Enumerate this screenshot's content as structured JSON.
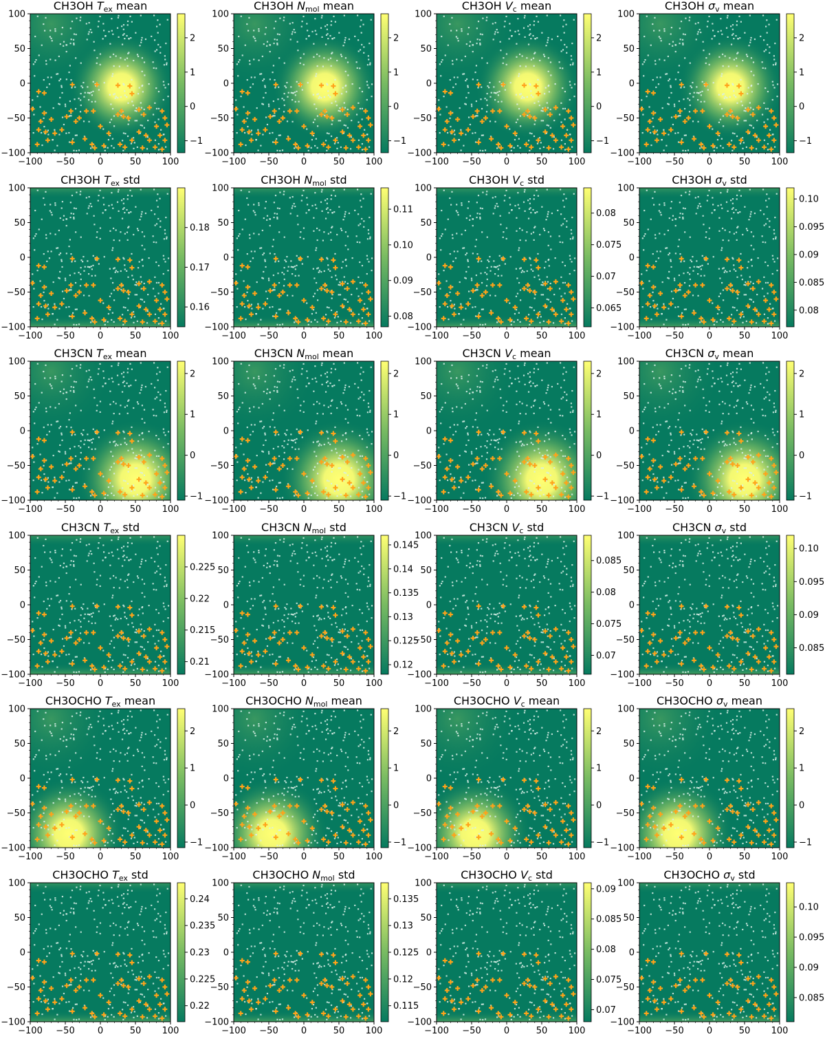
{
  "figure": {
    "x_ticks": [
      -100,
      -50,
      0,
      50,
      100
    ],
    "y_ticks": [
      -100,
      -50,
      0,
      50,
      100
    ],
    "xlim": [
      -100,
      100
    ],
    "ylim": [
      -100,
      100
    ],
    "colormap": {
      "low": "#067a5f",
      "mid": "#78bb62",
      "high": "#ffff73"
    },
    "point_colors": {
      "white": "#d8efe6",
      "orange": "#ffa31a"
    }
  },
  "chart_data": [
    {
      "type": "heatmap",
      "title_prefix": "CH3OH",
      "var_sym": "T",
      "var_sub": "ex",
      "stat": "mean",
      "colorbar_ticks": [
        -1,
        0,
        1,
        2
      ],
      "colorbar_range": [
        -1.35,
        2.7
      ],
      "blob": {
        "x": 30,
        "y": -5,
        "r": 75
      }
    },
    {
      "type": "heatmap",
      "title_prefix": "CH3OH",
      "var_sym": "N",
      "var_sub": "mol",
      "stat": "mean",
      "colorbar_ticks": [
        -1,
        0,
        1,
        2
      ],
      "colorbar_range": [
        -1.35,
        2.7
      ],
      "blob": {
        "x": 30,
        "y": -5,
        "r": 75
      }
    },
    {
      "type": "heatmap",
      "title_prefix": "CH3OH",
      "var_sym": "V",
      "var_sub": "c",
      "stat": "mean",
      "colorbar_ticks": [
        -1,
        0,
        1,
        2
      ],
      "colorbar_range": [
        -1.35,
        2.7
      ],
      "blob": {
        "x": 30,
        "y": -5,
        "r": 75
      }
    },
    {
      "type": "heatmap",
      "title_prefix": "CH3OH",
      "var_sym": "σ",
      "var_sub": "v",
      "stat": "mean",
      "colorbar_ticks": [
        -1,
        0,
        1,
        2
      ],
      "colorbar_range": [
        -1.35,
        2.7
      ],
      "blob": {
        "x": 30,
        "y": -5,
        "r": 75
      }
    },
    {
      "type": "heatmap",
      "title_prefix": "CH3OH",
      "var_sym": "T",
      "var_sub": "ex",
      "stat": "std",
      "colorbar_ticks": [
        0.16,
        0.17,
        0.18
      ],
      "colorbar_range": [
        0.155,
        0.19
      ]
    },
    {
      "type": "heatmap",
      "title_prefix": "CH3OH",
      "var_sym": "N",
      "var_sub": "mol",
      "stat": "std",
      "colorbar_ticks": [
        0.08,
        0.09,
        0.1,
        0.11
      ],
      "colorbar_range": [
        0.077,
        0.116
      ]
    },
    {
      "type": "heatmap",
      "title_prefix": "CH3OH",
      "var_sym": "V",
      "var_sub": "c",
      "stat": "std",
      "colorbar_ticks": [
        0.065,
        0.07,
        0.075,
        0.08
      ],
      "colorbar_range": [
        0.062,
        0.084
      ]
    },
    {
      "type": "heatmap",
      "title_prefix": "CH3OH",
      "var_sym": "σ",
      "var_sub": "v",
      "stat": "std",
      "colorbar_ticks": [
        0.08,
        0.085,
        0.09,
        0.095,
        0.1
      ],
      "colorbar_range": [
        0.077,
        0.102
      ]
    },
    {
      "type": "heatmap",
      "title_prefix": "CH3CN",
      "var_sym": "T",
      "var_sub": "ex",
      "stat": "mean",
      "colorbar_ticks": [
        -1,
        0,
        1,
        2
      ],
      "colorbar_range": [
        -1.1,
        2.3
      ],
      "blob": {
        "x": 50,
        "y": -70,
        "r": 85
      }
    },
    {
      "type": "heatmap",
      "title_prefix": "CH3CN",
      "var_sym": "N",
      "var_sub": "mol",
      "stat": "mean",
      "colorbar_ticks": [
        -1,
        0,
        1,
        2
      ],
      "colorbar_range": [
        -1.1,
        2.3
      ],
      "blob": {
        "x": 50,
        "y": -70,
        "r": 85
      }
    },
    {
      "type": "heatmap",
      "title_prefix": "CH3CN",
      "var_sym": "V",
      "var_sub": "c",
      "stat": "mean",
      "colorbar_ticks": [
        -1,
        0,
        1,
        2
      ],
      "colorbar_range": [
        -1.1,
        2.3
      ],
      "blob": {
        "x": 50,
        "y": -70,
        "r": 85
      }
    },
    {
      "type": "heatmap",
      "title_prefix": "CH3CN",
      "var_sym": "σ",
      "var_sub": "v",
      "stat": "mean",
      "colorbar_ticks": [
        -1,
        0,
        1,
        2
      ],
      "colorbar_range": [
        -1.1,
        2.3
      ],
      "blob": {
        "x": 50,
        "y": -70,
        "r": 85
      }
    },
    {
      "type": "heatmap",
      "title_prefix": "CH3CN",
      "var_sym": "T",
      "var_sub": "ex",
      "stat": "std",
      "colorbar_ticks": [
        0.21,
        0.215,
        0.22,
        0.225
      ],
      "colorbar_range": [
        0.208,
        0.23
      ]
    },
    {
      "type": "heatmap",
      "title_prefix": "CH3CN",
      "var_sym": "N",
      "var_sub": "mol",
      "stat": "std",
      "colorbar_ticks": [
        0.12,
        0.125,
        0.13,
        0.135,
        0.14,
        0.145
      ],
      "colorbar_range": [
        0.118,
        0.147
      ]
    },
    {
      "type": "heatmap",
      "title_prefix": "CH3CN",
      "var_sym": "V",
      "var_sub": "c",
      "stat": "std",
      "colorbar_ticks": [
        0.07,
        0.075,
        0.08,
        0.085
      ],
      "colorbar_range": [
        0.067,
        0.089
      ]
    },
    {
      "type": "heatmap",
      "title_prefix": "CH3CN",
      "var_sym": "σ",
      "var_sub": "v",
      "stat": "std",
      "colorbar_ticks": [
        0.085,
        0.09,
        0.095,
        0.1
      ],
      "colorbar_range": [
        0.081,
        0.102
      ]
    },
    {
      "type": "heatmap",
      "title_prefix": "CH3OCHO",
      "var_sym": "T",
      "var_sub": "ex",
      "stat": "mean",
      "colorbar_ticks": [
        -1,
        0,
        1,
        2
      ],
      "colorbar_range": [
        -1.15,
        2.6
      ],
      "blob": {
        "x": -45,
        "y": -80,
        "r": 80
      }
    },
    {
      "type": "heatmap",
      "title_prefix": "CH3OCHO",
      "var_sym": "N",
      "var_sub": "mol",
      "stat": "mean",
      "colorbar_ticks": [
        -1,
        0,
        1,
        2
      ],
      "colorbar_range": [
        -1.15,
        2.6
      ],
      "blob": {
        "x": -45,
        "y": -80,
        "r": 80
      }
    },
    {
      "type": "heatmap",
      "title_prefix": "CH3OCHO",
      "var_sym": "V",
      "var_sub": "c",
      "stat": "mean",
      "colorbar_ticks": [
        -1,
        0,
        1,
        2
      ],
      "colorbar_range": [
        -1.15,
        2.6
      ],
      "blob": {
        "x": -45,
        "y": -80,
        "r": 80
      }
    },
    {
      "type": "heatmap",
      "title_prefix": "CH3OCHO",
      "var_sym": "σ",
      "var_sub": "v",
      "stat": "mean",
      "colorbar_ticks": [
        -1,
        0,
        1,
        2
      ],
      "colorbar_range": [
        -1.15,
        2.6
      ],
      "blob": {
        "x": -45,
        "y": -80,
        "r": 80
      }
    },
    {
      "type": "heatmap",
      "title_prefix": "CH3OCHO",
      "var_sym": "T",
      "var_sub": "ex",
      "stat": "std",
      "colorbar_ticks": [
        0.22,
        0.225,
        0.23,
        0.235,
        0.24
      ],
      "colorbar_range": [
        0.217,
        0.243
      ]
    },
    {
      "type": "heatmap",
      "title_prefix": "CH3OCHO",
      "var_sym": "N",
      "var_sub": "mol",
      "stat": "std",
      "colorbar_ticks": [
        0.115,
        0.12,
        0.125,
        0.13,
        0.135
      ],
      "colorbar_range": [
        0.112,
        0.138
      ]
    },
    {
      "type": "heatmap",
      "title_prefix": "CH3OCHO",
      "var_sym": "V",
      "var_sub": "c",
      "stat": "std",
      "colorbar_ticks": [
        0.07,
        0.075,
        0.08,
        0.085,
        0.09
      ],
      "colorbar_range": [
        0.068,
        0.091
      ]
    },
    {
      "type": "heatmap",
      "title_prefix": "CH3OCHO",
      "var_sym": "σ",
      "var_sub": "v",
      "stat": "std",
      "colorbar_ticks": [
        0.085,
        0.09,
        0.095,
        0.1
      ],
      "colorbar_range": [
        0.081,
        0.104
      ]
    }
  ],
  "markers": {
    "orange": [
      [
        -88,
        -12
      ],
      [
        -80,
        -14
      ],
      [
        -40,
        -2
      ],
      [
        -5,
        -2
      ],
      [
        -97,
        -37
      ],
      [
        -80,
        -43
      ],
      [
        -70,
        -52
      ],
      [
        -85,
        -55
      ],
      [
        -88,
        -67
      ],
      [
        -78,
        -70
      ],
      [
        -65,
        -72
      ],
      [
        -75,
        -82
      ],
      [
        -90,
        -88
      ],
      [
        -55,
        -67
      ],
      [
        -48,
        -48
      ],
      [
        -42,
        -40
      ],
      [
        -35,
        -55
      ],
      [
        -30,
        -50
      ],
      [
        -20,
        -40
      ],
      [
        -10,
        -40
      ],
      [
        0,
        -62
      ],
      [
        -40,
        -85
      ],
      [
        -22,
        -80
      ],
      [
        -12,
        -88
      ],
      [
        -8,
        -93
      ],
      [
        5,
        -90
      ],
      [
        25,
        -3
      ],
      [
        42,
        -4
      ],
      [
        30,
        -40
      ],
      [
        40,
        -50
      ],
      [
        33,
        -48
      ],
      [
        25,
        -45
      ],
      [
        45,
        -15
      ],
      [
        55,
        -38
      ],
      [
        62,
        -45
      ],
      [
        70,
        -35
      ],
      [
        88,
        -40
      ],
      [
        92,
        -50
      ],
      [
        95,
        -60
      ],
      [
        55,
        -70
      ],
      [
        65,
        -75
      ],
      [
        80,
        -62
      ],
      [
        85,
        -75
      ],
      [
        92,
        -82
      ],
      [
        70,
        -82
      ],
      [
        45,
        -82
      ],
      [
        35,
        -92
      ],
      [
        28,
        -88
      ],
      [
        12,
        -72
      ],
      [
        60,
        -93
      ],
      [
        78,
        -92
      ],
      [
        88,
        -95
      ]
    ]
  }
}
